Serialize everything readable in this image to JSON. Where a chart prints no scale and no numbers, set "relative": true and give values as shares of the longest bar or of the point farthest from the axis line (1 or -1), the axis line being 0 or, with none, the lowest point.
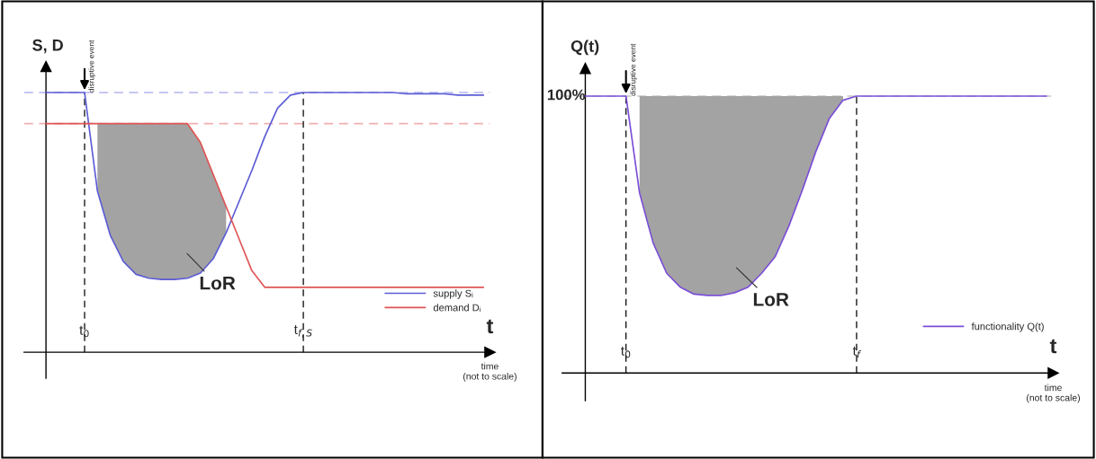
{
  "chart_data": [
    {
      "type": "line",
      "relative": true,
      "ylabel": "S, D",
      "xlabel": "t",
      "categories": [
        null,
        null,
        null,
        "t$_{0}$",
        null,
        null,
        null,
        null,
        null,
        null,
        null,
        null,
        null,
        null,
        null,
        null,
        null,
        null,
        null,
        null,
        "t$_{f,S}$",
        null,
        null,
        null,
        null,
        null,
        null,
        null,
        null,
        null,
        null,
        null,
        null,
        null,
        null
      ],
      "tick_labels": "x",
      "legend": "bottom right",
      "series": [
        {
          "type": "line",
          "name": "supply Sᵢ",
          "color": "#5c5cd6",
          "lower": [
            null,
            null,
            null,
            null,
            0.62,
            0.45,
            0.35,
            0.3,
            0.285,
            0.28,
            0.28,
            0.285,
            0.305,
            0.36,
            0.46,
            null,
            null,
            null,
            null,
            null,
            null,
            null,
            null,
            null,
            null,
            null,
            null,
            null,
            null,
            null,
            null,
            null,
            null,
            null,
            null
          ],
          "upper": [
            null,
            null,
            null,
            null,
            0.88,
            0.88,
            0.88,
            0.88,
            0.88,
            0.88,
            0.88,
            0.88,
            0.808,
            0.684,
            0.561,
            null,
            null,
            null,
            null,
            null,
            null,
            null,
            null,
            null,
            null,
            null,
            null,
            null,
            null,
            null,
            null,
            null,
            null,
            null,
            null
          ],
          "values": [
            1,
            1,
            1,
            1,
            0.62,
            0.45,
            0.35,
            0.3,
            0.285,
            0.28,
            0.28,
            0.285,
            0.305,
            0.36,
            0.46,
            0.58,
            0.7,
            0.83,
            0.94,
            0.99,
            1,
            1,
            1,
            1,
            1,
            1,
            1,
            1,
            0.995,
            0.995,
            0.995,
            0.995,
            0.99,
            0.99,
            0.99
          ]
        },
        {
          "type": "line",
          "name": "demand Dᵢ",
          "color": "#e05555",
          "values": [
            0.88,
            0.88,
            0.88,
            0.88,
            0.88,
            0.88,
            0.88,
            0.88,
            0.88,
            0.88,
            0.88,
            0.88,
            0.808,
            0.684,
            0.561,
            0.437,
            0.314,
            0.25,
            0.25,
            0.25,
            0.25,
            0.25,
            0.25,
            0.25,
            0.25,
            0.25,
            0.25,
            0.25,
            0.25,
            0.25,
            0.25,
            0.25,
            0.25,
            0.25,
            0.25
          ]
        }
      ],
      "ref_lines": [
        {
          "axis": "y",
          "value": 1,
          "color": "#b4b4ee",
          "line_style": "dashed"
        },
        {
          "axis": "y",
          "value": 0.88,
          "color": "#f0b0b0",
          "line_style": "dashed"
        },
        {
          "axis": "x",
          "value": "t$_{0}$",
          "label": "disruptive event",
          "color": "#000000",
          "line_style": "dashed"
        },
        {
          "axis": "x",
          "value": "t$_{f,S}$",
          "color": "#000000",
          "line_style": "dashed"
        }
      ],
      "annotations": [
        "LoR",
        "time\n(not to scale)"
      ]
    },
    {
      "type": "line",
      "relative": true,
      "ylabel": "Q(t)",
      "xlabel": "t",
      "categories": [
        null,
        null,
        null,
        "t$_{0}$",
        null,
        null,
        null,
        null,
        null,
        null,
        null,
        null,
        null,
        null,
        null,
        null,
        null,
        null,
        null,
        null,
        "t$_{f}$",
        null,
        null,
        null,
        null,
        null,
        null,
        null,
        null,
        null,
        null,
        null,
        null,
        null,
        null
      ],
      "tick_labels": "x",
      "legend": "bottom right",
      "series": [
        {
          "type": "line",
          "name": "functionality Q(t)",
          "color": "#7b4fd6",
          "lower": [
            null,
            null,
            null,
            null,
            0.65,
            0.47,
            0.36,
            0.31,
            0.285,
            0.28,
            0.28,
            0.29,
            0.31,
            0.36,
            0.42,
            0.53,
            0.66,
            0.8,
            0.92,
            0.985,
            null,
            null,
            null,
            null,
            null,
            null,
            null,
            null,
            null,
            null,
            null,
            null,
            null,
            null,
            null
          ],
          "upper": [
            null,
            null,
            null,
            null,
            1,
            1,
            1,
            1,
            1,
            1,
            1,
            1,
            1,
            1,
            1,
            1,
            1,
            1,
            1,
            1,
            null,
            null,
            null,
            null,
            null,
            null,
            null,
            null,
            null,
            null,
            null,
            null,
            null,
            null,
            null
          ],
          "values": [
            1,
            1,
            1,
            1,
            0.65,
            0.47,
            0.36,
            0.31,
            0.285,
            0.28,
            0.28,
            0.29,
            0.31,
            0.36,
            0.42,
            0.53,
            0.66,
            0.8,
            0.92,
            0.985,
            1,
            1,
            1,
            1,
            1,
            1,
            1,
            1,
            1,
            1,
            1,
            1,
            1,
            1,
            1
          ]
        }
      ],
      "ref_lines": [
        {
          "axis": "y",
          "value": 1,
          "color": "#c8c8c8",
          "line_style": "dashed"
        },
        {
          "axis": "x",
          "value": "t$_{0}$",
          "label": "disruptive event",
          "color": "#000000",
          "line_style": "dashed"
        },
        {
          "axis": "x",
          "value": "t$_{f}$",
          "color": "#000000",
          "line_style": "dashed"
        }
      ],
      "annotations": [
        "LoR",
        "time\n(not to scale)",
        "100%"
      ]
    }
  ]
}
